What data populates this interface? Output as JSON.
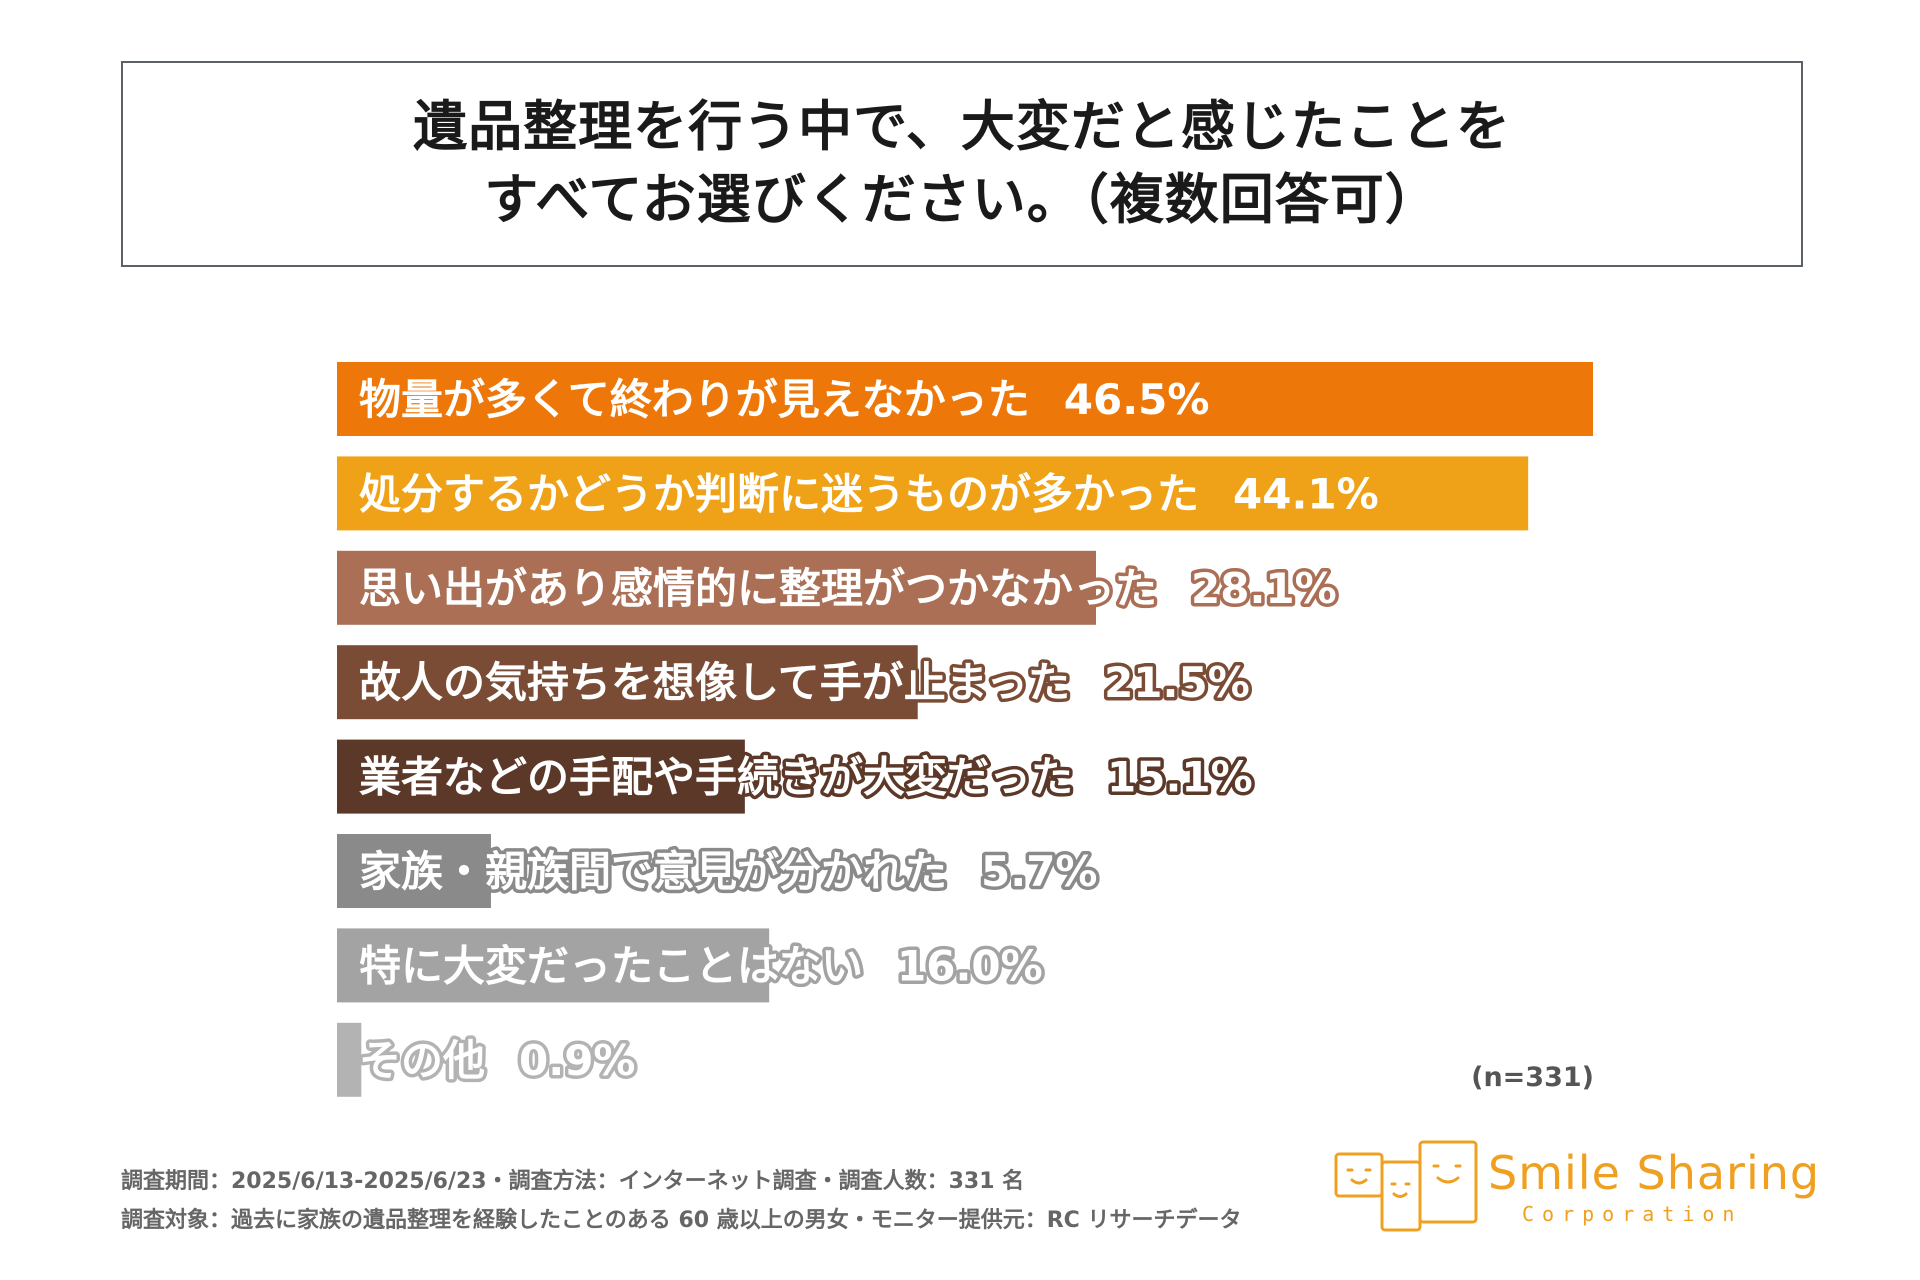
{
  "title": {
    "line1": "遺品整理を行う中で、大変だと感じたことを",
    "line2": "すべてお選びください。（複数回答可）"
  },
  "chart_data": {
    "type": "bar",
    "orientation": "horizontal",
    "title": "遺品整理を行う中で、大変だと感じたことを すべてお選びください。（複数回答可）",
    "categories": [
      "物量が多くて終わりが見えなかった",
      "処分するかどうか判断に迷うものが多かった",
      "思い出があり感情的に整理がつかなかった",
      "故人の気持ちを想像して手が止まった",
      "業者などの手配や手続きが大変だった",
      "家族・親族間で意見が分かれた",
      "特に大変だったことはない",
      "その他"
    ],
    "values": [
      46.5,
      44.1,
      28.1,
      21.5,
      15.1,
      5.7,
      16.0,
      0.9
    ],
    "value_labels": [
      "46.5%",
      "44.1%",
      "28.1%",
      "21.5%",
      "15.1%",
      "5.7%",
      "16.0%",
      "0.9%"
    ],
    "colors": [
      "#ee7709",
      "#efa217",
      "#aa6f55",
      "#7b4c35",
      "#5c3828",
      "#8a8a8a",
      "#a3a3a3",
      "#b3b3b3"
    ],
    "unit": "%",
    "xlim": [
      0,
      46.5
    ],
    "grid": false,
    "legend": "none"
  },
  "sample_note": "(n=331)",
  "footnotes": {
    "line1": "調査期間：2025/6/13-2025/6/23・調査方法：インターネット調査・調査人数：331 名",
    "line2": "調査対象：過去に家族の遺品整理を経験したことのある 60 歳以上の男女・モニター提供元：RC リサーチデータ"
  },
  "logo": {
    "name": "Smile Sharing",
    "sub": "Corporation",
    "color": "#f0a020"
  }
}
